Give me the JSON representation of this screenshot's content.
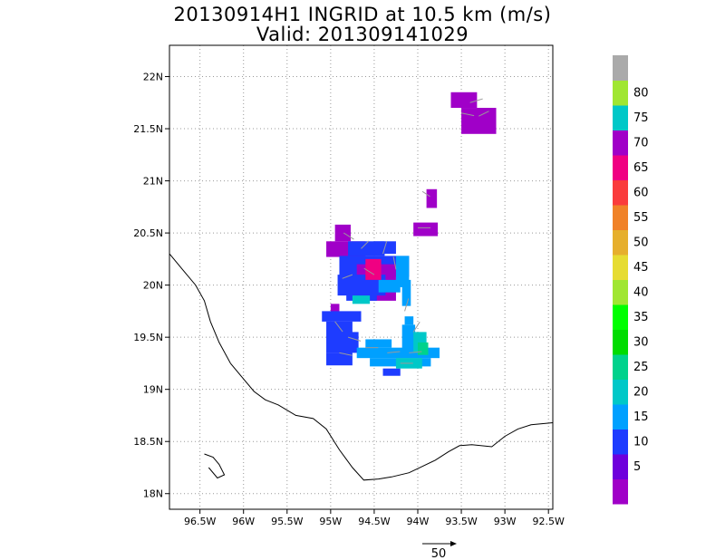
{
  "title": "20130914H1 INGRID at 10.5 km (m/s)",
  "subtitle": "Valid: 201309141029",
  "map": {
    "lon_range": [
      -96.85,
      -92.45
    ],
    "lat_range": [
      17.85,
      22.3
    ],
    "lon_ticks": [
      -96.5,
      -96,
      -95.5,
      -95,
      -94.5,
      -94,
      -93.5,
      -93,
      -92.5
    ],
    "lon_tick_labels": [
      "96.5W",
      "96W",
      "95.5W",
      "95W",
      "94.5W",
      "94W",
      "93.5W",
      "93W",
      "92.5W"
    ],
    "lat_ticks": [
      18,
      18.5,
      19,
      19.5,
      20,
      20.5,
      21,
      21.5,
      22
    ],
    "lat_tick_labels": [
      "18N",
      "18.5N",
      "19N",
      "19.5N",
      "20N",
      "20.5N",
      "21N",
      "21.5N",
      "22N"
    ],
    "grid": "dotted",
    "coast_color": "#000000",
    "wind_colors": [
      "#a000c8",
      "#6e00dc",
      "#1e3cff",
      "#00a0ff",
      "#00c8c8",
      "#00d28c",
      "#00dc00",
      "#a0e632",
      "#e6dc32",
      "#e6af2d",
      "#f08228",
      "#fa3c3c",
      "#f00082",
      "#a000c8",
      "#00c8c8",
      "#a0e632",
      "#aaaaaa"
    ]
  },
  "vector_reference": {
    "label": "50",
    "units": "m/s"
  },
  "colorbar": {
    "labels": [
      "5",
      "10",
      "15",
      "20",
      "25",
      "30",
      "35",
      "40",
      "45",
      "50",
      "55",
      "60",
      "65",
      "70",
      "75",
      "80"
    ],
    "colors": [
      "#a000c8",
      "#6e00dc",
      "#1e3cff",
      "#00a0ff",
      "#00c8c8",
      "#00d28c",
      "#00dc00",
      "#00ff00",
      "#a0e632",
      "#e6dc32",
      "#e6af2d",
      "#f08228",
      "#fa3c3c",
      "#f00082",
      "#a000c8",
      "#00c8c8",
      "#a0e632",
      "#aaaaaa"
    ]
  }
}
